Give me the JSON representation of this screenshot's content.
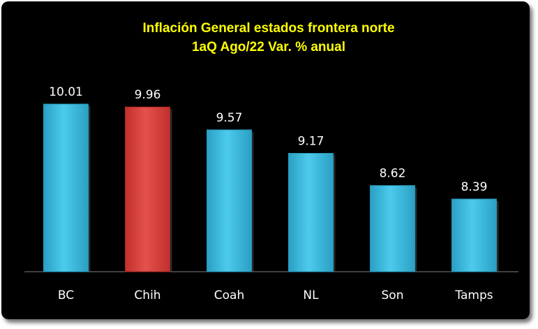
{
  "chart_data": {
    "type": "bar",
    "title_lines": [
      "Inflación General estados frontera norte",
      "1aQ Ago/22 Var. % anual"
    ],
    "categories": [
      "BC",
      "Chih",
      "Coah",
      "NL",
      "Son",
      "Tamps"
    ],
    "values": [
      10.01,
      9.96,
      9.57,
      9.17,
      8.62,
      8.39
    ],
    "value_labels": [
      "10.01",
      "9.96",
      "9.57",
      "9.17",
      "8.62",
      "8.39"
    ],
    "highlight_index": 1,
    "colors": {
      "bar": "#3cb8dc",
      "highlight": "#d9413c",
      "title": "#ffff00",
      "text": "#ffffff",
      "background": "#000000"
    },
    "ylim": [
      7.15,
      10.01
    ],
    "xlabel": "",
    "ylabel": "",
    "grid": false,
    "legend": "none"
  }
}
